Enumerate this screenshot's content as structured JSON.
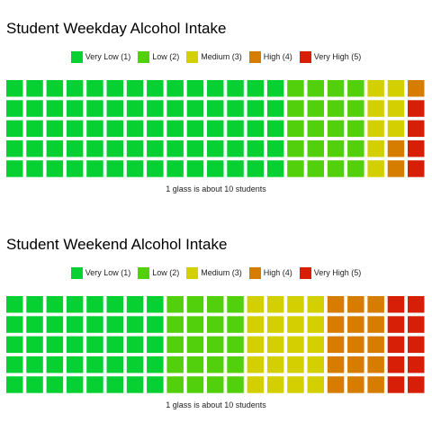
{
  "chart_data": [
    {
      "type": "waffle",
      "title": "Student Weekday Alcohol Intake",
      "caption": "1 glass is about 10 students",
      "rows": 5,
      "columns": 21,
      "unit": "glass",
      "categories": [
        "Very Low (1)",
        "Low (2)",
        "Medium (3)",
        "High (4)",
        "Very High (5)"
      ],
      "colors": [
        "#07d033",
        "#52d00b",
        "#d4cf00",
        "#d67d00",
        "#d61f06"
      ],
      "values": [
        70,
        20,
        8,
        3,
        4
      ],
      "legend_position": "top-center"
    },
    {
      "type": "waffle",
      "title": "Student Weekend Alcohol Intake",
      "caption": "1 glass is about 10 students",
      "rows": 5,
      "columns": 21,
      "unit": "glass",
      "categories": [
        "Very Low (1)",
        "Low (2)",
        "Medium (3)",
        "High (4)",
        "Very High (5)"
      ],
      "colors": [
        "#07d033",
        "#52d00b",
        "#d4cf00",
        "#d67d00",
        "#d61f06"
      ],
      "values": [
        40,
        20,
        20,
        15,
        10
      ],
      "legend_position": "top-center"
    }
  ]
}
